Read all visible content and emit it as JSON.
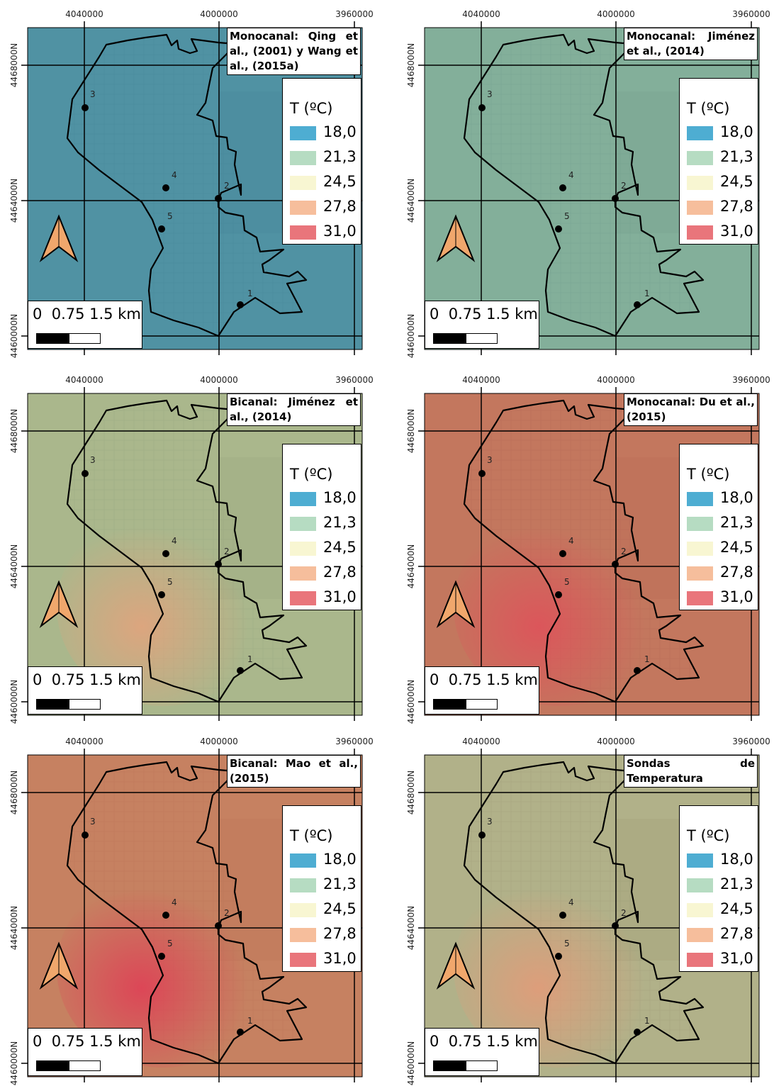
{
  "axes": {
    "x_ticks": [
      "4040000",
      "4000000",
      "3960000"
    ],
    "y_ticks": [
      "4468000N",
      "4464000N",
      "4460000N"
    ]
  },
  "legend": {
    "title": "T (ºC)",
    "entries": [
      {
        "value": "18,0",
        "color": "#4eadd2"
      },
      {
        "value": "21,3",
        "color": "#b6dcc2"
      },
      {
        "value": "24,5",
        "color": "#f8f6d2"
      },
      {
        "value": "27,8",
        "color": "#f6be9c"
      },
      {
        "value": "31,0",
        "color": "#e9757b"
      }
    ]
  },
  "scalebar": {
    "label": "0  0.75 1.5 km"
  },
  "station_labels": [
    "1",
    "2",
    "3",
    "4",
    "5"
  ],
  "panels": [
    {
      "title": "Monocanal: Qing et al., (2001) y Wang et al., (2015a)",
      "tint": "#3f8fae",
      "hot": "none",
      "opacity": 0.78
    },
    {
      "title": "Monocanal: Jiménez et al., (2014)",
      "tint": "#7fb8a8",
      "hot": "none",
      "opacity": 0.7
    },
    {
      "title": "Bicanal: Jiménez et al., (2014)",
      "tint": "#b9c797",
      "hot": "#e5a27c",
      "opacity": 0.66
    },
    {
      "title": "Monocanal: Du et al., (2015)",
      "tint": "#d66a55",
      "hot": "#e0505a",
      "opacity": 0.74
    },
    {
      "title": "Bicanal: Mao et al., (2015)",
      "tint": "#d9795a",
      "hot": "#e03c55",
      "opacity": 0.76
    },
    {
      "title": "Sondas de Temperatura",
      "tint": "#c9c292",
      "hot": "#e59a78",
      "opacity": 0.6
    }
  ]
}
